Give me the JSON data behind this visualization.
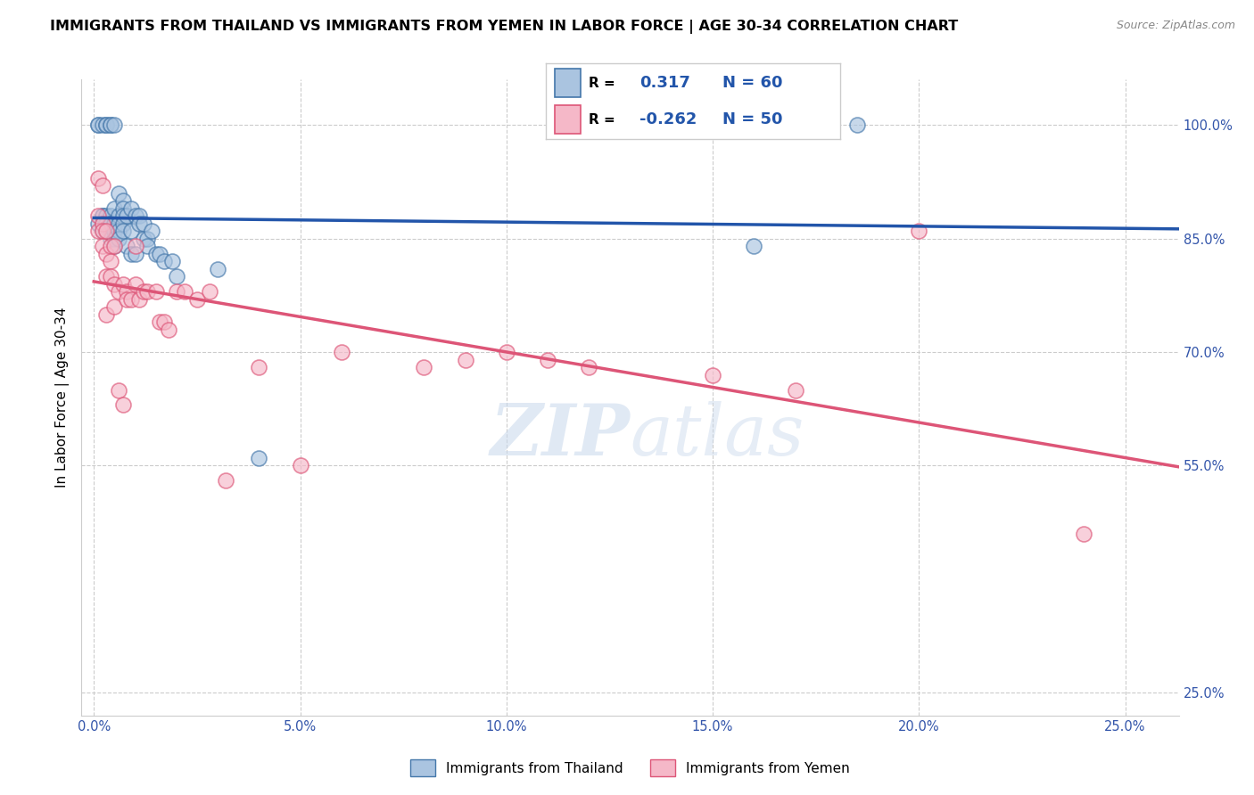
{
  "title": "IMMIGRANTS FROM THAILAND VS IMMIGRANTS FROM YEMEN IN LABOR FORCE | AGE 30-34 CORRELATION CHART",
  "source": "Source: ZipAtlas.com",
  "ylabel": "In Labor Force | Age 30-34",
  "x_ticks": [
    0.0,
    0.05,
    0.1,
    0.15,
    0.2,
    0.25
  ],
  "x_tick_labels": [
    "0.0%",
    "5.0%",
    "10.0%",
    "15.0%",
    "20.0%",
    "25.0%"
  ],
  "y_ticks": [
    0.25,
    0.55,
    0.7,
    0.85,
    1.0
  ],
  "y_tick_labels": [
    "25.0%",
    "55.0%",
    "70.0%",
    "85.0%",
    "100.0%"
  ],
  "xlim": [
    -0.003,
    0.263
  ],
  "ylim": [
    0.22,
    1.06
  ],
  "thailand_R": "0.317",
  "thailand_N": "60",
  "yemen_R": "-0.262",
  "yemen_N": "50",
  "thailand_scatter_color": "#aac4e0",
  "thailand_scatter_edge": "#4477aa",
  "yemen_scatter_color": "#f5b8c8",
  "yemen_scatter_edge": "#dd5577",
  "thailand_line_color": "#2255aa",
  "yemen_line_color": "#dd5577",
  "watermark_zip": "ZIP",
  "watermark_atlas": "atlas",
  "thailand_x": [
    0.001,
    0.001,
    0.001,
    0.002,
    0.002,
    0.002,
    0.002,
    0.002,
    0.003,
    0.003,
    0.003,
    0.003,
    0.003,
    0.003,
    0.004,
    0.004,
    0.004,
    0.004,
    0.004,
    0.004,
    0.004,
    0.005,
    0.005,
    0.005,
    0.005,
    0.005,
    0.005,
    0.006,
    0.006,
    0.006,
    0.006,
    0.006,
    0.007,
    0.007,
    0.007,
    0.007,
    0.007,
    0.008,
    0.008,
    0.009,
    0.009,
    0.009,
    0.01,
    0.01,
    0.011,
    0.011,
    0.012,
    0.012,
    0.013,
    0.013,
    0.014,
    0.015,
    0.016,
    0.017,
    0.019,
    0.02,
    0.03,
    0.04,
    0.16,
    0.185
  ],
  "thailand_y": [
    1.0,
    1.0,
    0.87,
    1.0,
    0.88,
    0.87,
    0.86,
    0.88,
    1.0,
    1.0,
    0.88,
    0.87,
    0.86,
    0.87,
    1.0,
    1.0,
    0.88,
    0.87,
    0.86,
    0.87,
    0.85,
    1.0,
    0.89,
    0.87,
    0.86,
    0.85,
    0.84,
    0.91,
    0.88,
    0.87,
    0.86,
    0.85,
    0.9,
    0.89,
    0.88,
    0.87,
    0.86,
    0.88,
    0.84,
    0.89,
    0.86,
    0.83,
    0.88,
    0.83,
    0.88,
    0.87,
    0.87,
    0.85,
    0.85,
    0.84,
    0.86,
    0.83,
    0.83,
    0.82,
    0.82,
    0.8,
    0.81,
    0.56,
    0.84,
    1.0
  ],
  "yemen_x": [
    0.001,
    0.001,
    0.001,
    0.002,
    0.002,
    0.002,
    0.002,
    0.003,
    0.003,
    0.003,
    0.003,
    0.004,
    0.004,
    0.004,
    0.005,
    0.005,
    0.005,
    0.006,
    0.006,
    0.007,
    0.007,
    0.008,
    0.008,
    0.009,
    0.01,
    0.01,
    0.011,
    0.012,
    0.013,
    0.015,
    0.016,
    0.017,
    0.018,
    0.02,
    0.022,
    0.025,
    0.028,
    0.032,
    0.04,
    0.05,
    0.06,
    0.08,
    0.09,
    0.1,
    0.11,
    0.12,
    0.15,
    0.17,
    0.2,
    0.24
  ],
  "yemen_y": [
    0.88,
    0.86,
    0.93,
    0.87,
    0.86,
    0.84,
    0.92,
    0.86,
    0.83,
    0.8,
    0.75,
    0.84,
    0.82,
    0.8,
    0.84,
    0.79,
    0.76,
    0.78,
    0.65,
    0.79,
    0.63,
    0.78,
    0.77,
    0.77,
    0.79,
    0.84,
    0.77,
    0.78,
    0.78,
    0.78,
    0.74,
    0.74,
    0.73,
    0.78,
    0.78,
    0.77,
    0.78,
    0.53,
    0.68,
    0.55,
    0.7,
    0.68,
    0.69,
    0.7,
    0.69,
    0.68,
    0.67,
    0.65,
    0.86,
    0.46
  ]
}
